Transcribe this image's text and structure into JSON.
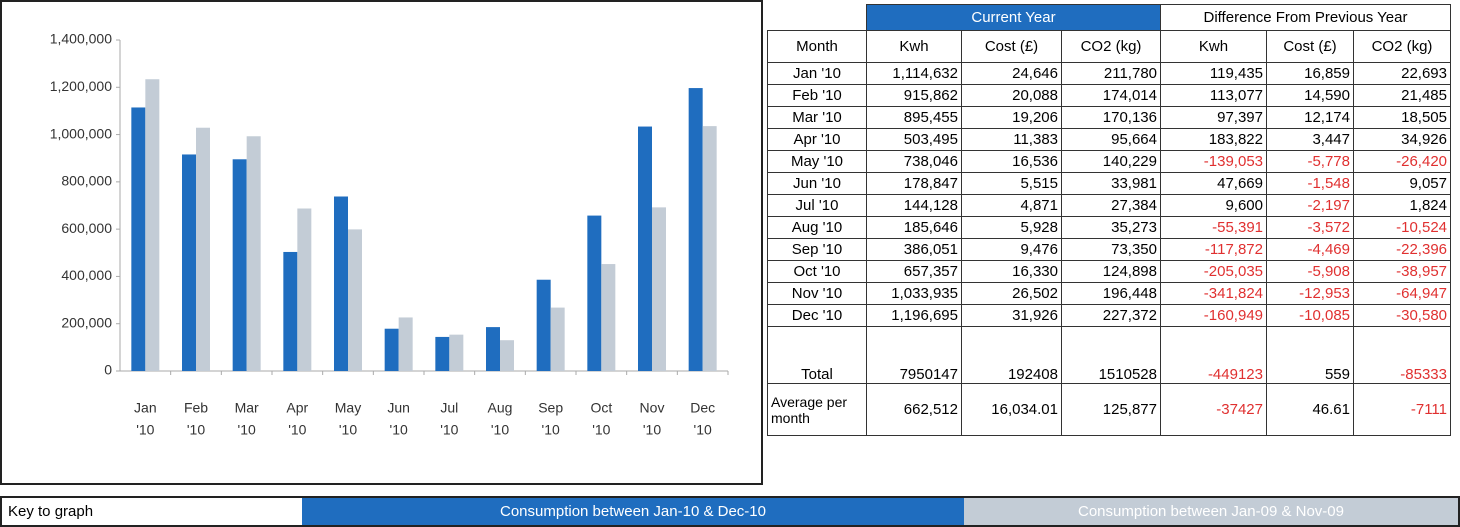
{
  "chart_data": {
    "type": "bar",
    "categories": [
      [
        "Jan",
        "'10"
      ],
      [
        "Feb",
        "'10"
      ],
      [
        "Mar",
        "'10"
      ],
      [
        "Apr",
        "'10"
      ],
      [
        "May",
        "'10"
      ],
      [
        "Jun",
        "'10"
      ],
      [
        "Jul",
        "'10"
      ],
      [
        "Aug",
        "'10"
      ],
      [
        "Sep",
        "'10"
      ],
      [
        "Oct",
        "'10"
      ],
      [
        "Nov",
        "'10"
      ],
      [
        "Dec",
        "'10"
      ]
    ],
    "series": [
      {
        "name": "Consumption between Jan-10 & Dec-10",
        "color": "#1f6dbf",
        "values": [
          1114632,
          915862,
          895455,
          503495,
          738046,
          178847,
          144128,
          185646,
          386051,
          657357,
          1033935,
          1196695
        ]
      },
      {
        "name": "Consumption between Jan-09 & Nov-09",
        "color": "#c3ccd6",
        "values": [
          1234067,
          1028939,
          992852,
          687317,
          598993,
          226516,
          153728,
          130255,
          268179,
          452322,
          692111,
          1035746
        ]
      }
    ],
    "legend_title": "Key to graph",
    "ylim": [
      0,
      1400000
    ],
    "yticks": [
      0,
      {
        "value": 200000,
        "label": "200,000"
      },
      {
        "value": 400000,
        "label": "400,000"
      },
      {
        "value": 600000,
        "label": "600,000"
      },
      {
        "value": 800000,
        "label": "800,000"
      },
      {
        "value": 1000000,
        "label": "1,000,000"
      },
      {
        "value": 1200000,
        "label": "1,200,000"
      },
      {
        "value": 1400000,
        "label": "1,400,000"
      }
    ]
  },
  "table": {
    "group_headers": [
      "Current Year",
      "Difference From Previous Year"
    ],
    "columns": [
      "Month",
      "Kwh",
      "Cost (£)",
      "CO2 (kg)",
      "Kwh",
      "Cost (£)",
      "CO2 (kg)"
    ],
    "rows": [
      [
        "Jan '10",
        "1,114,632",
        "24,646",
        "211,780",
        "119,435",
        "16,859",
        "22,693"
      ],
      [
        "Feb '10",
        "915,862",
        "20,088",
        "174,014",
        "113,077",
        "14,590",
        "21,485"
      ],
      [
        "Mar '10",
        "895,455",
        "19,206",
        "170,136",
        "97,397",
        "12,174",
        "18,505"
      ],
      [
        "Apr '10",
        "503,495",
        "11,383",
        "95,664",
        "183,822",
        "3,447",
        "34,926"
      ],
      [
        "May '10",
        "738,046",
        "16,536",
        "140,229",
        "-139,053",
        "-5,778",
        "-26,420"
      ],
      [
        "Jun '10",
        "178,847",
        "5,515",
        "33,981",
        "47,669",
        "-1,548",
        "9,057"
      ],
      [
        "Jul '10",
        "144,128",
        "4,871",
        "27,384",
        "9,600",
        "-2,197",
        "1,824"
      ],
      [
        "Aug '10",
        "185,646",
        "5,928",
        "35,273",
        "-55,391",
        "-3,572",
        "-10,524"
      ],
      [
        "Sep '10",
        "386,051",
        "9,476",
        "73,350",
        "-117,872",
        "-4,469",
        "-22,396"
      ],
      [
        "Oct '10",
        "657,357",
        "16,330",
        "124,898",
        "-205,035",
        "-5,908",
        "-38,957"
      ],
      [
        "Nov '10",
        "1,033,935",
        "26,502",
        "196,448",
        "-341,824",
        "-12,953",
        "-64,947"
      ],
      [
        "Dec '10",
        "1,196,695",
        "31,926",
        "227,372",
        "-160,949",
        "-10,085",
        "-30,580"
      ],
      [
        "Total",
        "7950147",
        "192408",
        "1510528",
        "-449123",
        "559",
        "-85333"
      ],
      [
        "Average per month",
        "662,512",
        "16,034.01",
        "125,877",
        "-37427",
        "46.61",
        "-7111"
      ]
    ]
  }
}
